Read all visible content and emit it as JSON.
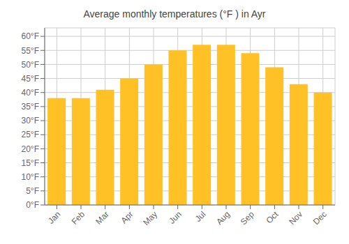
{
  "chart_data": {
    "type": "bar",
    "title": "Average monthly temperatures (°F ) in Ayr",
    "categories": [
      "Jan",
      "Feb",
      "Mar",
      "Apr",
      "May",
      "Jun",
      "Jul",
      "Aug",
      "Sep",
      "Oct",
      "Nov",
      "Dec"
    ],
    "values": [
      38,
      38,
      41,
      45,
      50,
      55,
      57,
      57,
      54,
      49,
      43,
      40
    ],
    "color": "#FFC125",
    "ylim": [
      0,
      63
    ],
    "yticks": [
      {
        "value": 0,
        "label": "0°F"
      },
      {
        "value": 5,
        "label": "5°F"
      },
      {
        "value": 10,
        "label": "10°F"
      },
      {
        "value": 15,
        "label": "15°F"
      },
      {
        "value": 20,
        "label": "20°F"
      },
      {
        "value": 25,
        "label": "25°F"
      },
      {
        "value": 30,
        "label": "30°F"
      },
      {
        "value": 35,
        "label": "35°F"
      },
      {
        "value": 40,
        "label": "40°F"
      },
      {
        "value": 45,
        "label": "45°F"
      },
      {
        "value": 50,
        "label": "50°F"
      },
      {
        "value": 55,
        "label": "55°F"
      },
      {
        "value": 60,
        "label": "60°F"
      }
    ],
    "grid": true
  }
}
